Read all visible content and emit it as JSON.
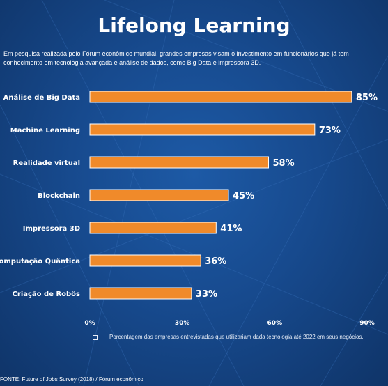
{
  "title": "Lifelong Learning",
  "intro": {
    "line1": "Em pesquisa realizada pelo Fórum econômico mundial, grandes empresas visam o investimento em funcionários que já tem",
    "line2": "conhecimento em tecnologia avançada e análise de dados, como Big Data e impressora 3D."
  },
  "chart_data": {
    "type": "bar",
    "orientation": "horizontal",
    "categories": [
      "Análise de Big Data",
      "Machine Learning",
      "Realidade virtual",
      "Blockchain",
      "Impressora 3D",
      "Computação Quântica",
      "Criação de Robôs"
    ],
    "values": [
      85,
      73,
      58,
      45,
      41,
      36,
      33
    ],
    "value_labels": [
      "85%",
      "73%",
      "58%",
      "45%",
      "41%",
      "36%",
      "33%"
    ],
    "xlim": [
      0,
      90
    ],
    "xticks": [
      0,
      30,
      60,
      90
    ],
    "xtick_labels": [
      "0%",
      "30%",
      "60%",
      "90%"
    ],
    "grid": false,
    "bar_color": "#f08a2a",
    "legend_placement": "bottom"
  },
  "legend": {
    "text": "Porcentagem das empresas entrevistadas que utilizariam dada tecnologia até 2022 em seus negócios."
  },
  "source": "FONTE: Future of Jobs Survey (2018) / Fórum econômico",
  "colors": {
    "background": "#174a8e",
    "bar": "#f08a2a",
    "bar_border": "#ffffff",
    "text": "#ffffff"
  }
}
